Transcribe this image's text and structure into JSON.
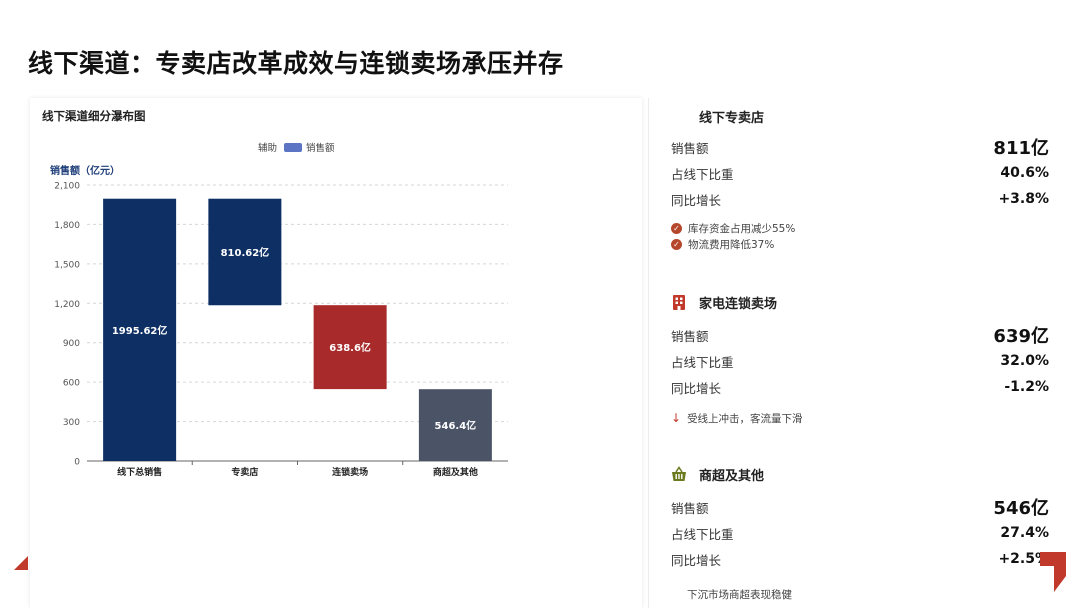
{
  "page": {
    "title": "线下渠道：专卖店改革成效与连锁卖场承压并存"
  },
  "colors": {
    "dark_navy": "#0d2f63",
    "red": "#a82a2a",
    "slate": "#4b5466",
    "helper_legend": "#5b74c4",
    "accent": "#c0392b"
  },
  "chart_data": {
    "type": "bar",
    "title": "线下渠道细分瀑布图",
    "ylabel": "销售额（亿元）",
    "legend": [
      "辅助",
      "销售额"
    ],
    "legend_position": "top",
    "categories": [
      "线下总销售",
      "专卖店",
      "连锁卖场",
      "商超及其他"
    ],
    "series": [
      {
        "name": "辅助",
        "values": [
          0,
          1185,
          547,
          0
        ]
      },
      {
        "name": "销售额",
        "values": [
          1995.62,
          810.62,
          638.6,
          546.4
        ]
      }
    ],
    "data_labels": [
      "1995.62亿",
      "810.62亿",
      "638.6亿",
      "546.4亿"
    ],
    "bar_colors": [
      "#0d2f63",
      "#0d2f63",
      "#a82a2a",
      "#4b5466"
    ],
    "ylim": [
      0,
      2100
    ],
    "yticks": [
      "0",
      "300",
      "600",
      "900",
      "1,200",
      "1,500",
      "1,800",
      "2,100"
    ],
    "grid": true
  },
  "panel": {
    "store": {
      "title": "线下专卖店",
      "sales_label": "销售额",
      "sales_value": "811亿",
      "share_label": "占线下比重",
      "share_value": "40.6%",
      "growth_label": "同比增长",
      "growth_value": "+3.8%",
      "notes": [
        "库存资金占用减少55%",
        "物流费用降低37%"
      ]
    },
    "chain": {
      "title": "家电连锁卖场",
      "icon": "building-icon",
      "sales_label": "销售额",
      "sales_value": "639亿",
      "share_label": "占线下比重",
      "share_value": "32.0%",
      "growth_label": "同比增长",
      "growth_value": "-1.2%",
      "note": "受线上冲击，客流量下滑"
    },
    "market": {
      "title": "商超及其他",
      "icon": "basket-icon",
      "sales_label": "销售额",
      "sales_value": "546亿",
      "share_label": "占线下比重",
      "share_value": "27.4%",
      "growth_label": "同比增长",
      "growth_value": "+2.5%",
      "note": "下沉市场商超表现稳健"
    }
  }
}
